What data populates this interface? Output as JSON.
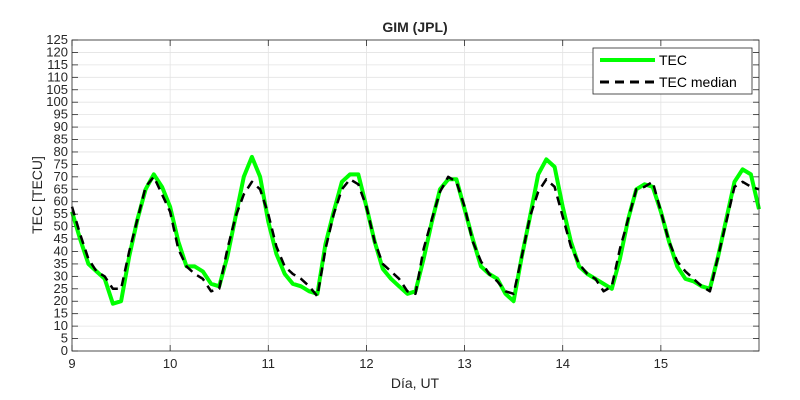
{
  "chart_data": {
    "type": "line",
    "title": "GIM (JPL)",
    "xlabel": "Día, UT",
    "ylabel": "TEC [TECU]",
    "xlim": [
      9,
      16
    ],
    "ylim": [
      0,
      125
    ],
    "x_ticks": [
      9,
      10,
      11,
      12,
      13,
      14,
      15
    ],
    "y_ticks": [
      0,
      5,
      10,
      15,
      20,
      25,
      30,
      35,
      40,
      45,
      50,
      55,
      60,
      65,
      70,
      75,
      80,
      85,
      90,
      95,
      100,
      105,
      110,
      115,
      120,
      125
    ],
    "grid": true,
    "legend_position": "top-right",
    "series": [
      {
        "name": "TEC",
        "color": "#00ff00",
        "style": "solid",
        "x": [
          9.0,
          9.083,
          9.167,
          9.25,
          9.333,
          9.417,
          9.5,
          9.583,
          9.667,
          9.75,
          9.833,
          9.917,
          10.0,
          10.083,
          10.167,
          10.25,
          10.333,
          10.417,
          10.5,
          10.583,
          10.667,
          10.75,
          10.833,
          10.917,
          11.0,
          11.083,
          11.167,
          11.25,
          11.333,
          11.417,
          11.5,
          11.583,
          11.667,
          11.75,
          11.833,
          11.917,
          12.0,
          12.083,
          12.167,
          12.25,
          12.333,
          12.417,
          12.5,
          12.583,
          12.667,
          12.75,
          12.833,
          12.917,
          13.0,
          13.083,
          13.167,
          13.25,
          13.333,
          13.417,
          13.5,
          13.583,
          13.667,
          13.75,
          13.833,
          13.917,
          14.0,
          14.083,
          14.167,
          14.25,
          14.333,
          14.417,
          14.5,
          14.583,
          14.667,
          14.75,
          14.833,
          14.917,
          15.0,
          15.083,
          15.167,
          15.25,
          15.333,
          15.417,
          15.5,
          15.583,
          15.667,
          15.75,
          15.833,
          15.917,
          16.0
        ],
        "values": [
          56,
          45,
          35,
          32,
          29,
          19,
          20,
          38,
          53,
          65,
          71,
          66,
          58,
          44,
          34,
          34,
          32,
          27,
          26,
          38,
          54,
          70,
          78,
          70,
          52,
          39,
          31,
          27,
          26,
          24,
          23,
          43,
          56,
          68,
          71,
          71,
          58,
          44,
          33,
          29,
          26,
          23,
          24,
          37,
          52,
          65,
          69,
          69,
          57,
          45,
          34,
          31,
          29,
          23,
          20,
          38,
          54,
          71,
          77,
          74,
          58,
          44,
          34,
          31,
          29,
          27,
          25,
          37,
          53,
          65,
          67,
          66,
          56,
          44,
          34,
          29,
          28,
          26,
          25,
          38,
          53,
          68,
          73,
          71,
          57
        ]
      },
      {
        "name": "TEC median",
        "color": "#000000",
        "style": "dashed",
        "x": [
          9.0,
          9.083,
          9.167,
          9.25,
          9.333,
          9.417,
          9.5,
          9.583,
          9.667,
          9.75,
          9.833,
          9.917,
          10.0,
          10.083,
          10.167,
          10.25,
          10.333,
          10.417,
          10.5,
          10.583,
          10.667,
          10.75,
          10.833,
          10.917,
          11.0,
          11.083,
          11.167,
          11.25,
          11.333,
          11.417,
          11.5,
          11.583,
          11.667,
          11.75,
          11.833,
          11.917,
          12.0,
          12.083,
          12.167,
          12.25,
          12.333,
          12.417,
          12.5,
          12.583,
          12.667,
          12.75,
          12.833,
          12.917,
          13.0,
          13.083,
          13.167,
          13.25,
          13.333,
          13.417,
          13.5,
          13.583,
          13.667,
          13.75,
          13.833,
          13.917,
          14.0,
          14.083,
          14.167,
          14.25,
          14.333,
          14.417,
          14.5,
          14.583,
          14.667,
          14.75,
          14.833,
          14.917,
          15.0,
          15.083,
          15.167,
          15.25,
          15.333,
          15.417,
          15.5,
          15.583,
          15.667,
          15.75,
          15.833,
          15.917,
          16.0
        ],
        "values": [
          58,
          47,
          37,
          32,
          30,
          25,
          25,
          40,
          53,
          66,
          70,
          63,
          56,
          41,
          34,
          31,
          29,
          24,
          25,
          41,
          54,
          63,
          68,
          65,
          55,
          42,
          34,
          31,
          29,
          26,
          22,
          41,
          55,
          65,
          69,
          67,
          58,
          44,
          35,
          32,
          29,
          24,
          23,
          41,
          53,
          64,
          70,
          68,
          58,
          44,
          36,
          31,
          28,
          24,
          23,
          38,
          54,
          64,
          69,
          66,
          54,
          42,
          35,
          31,
          29,
          24,
          26,
          41,
          53,
          65,
          66,
          68,
          56,
          44,
          36,
          32,
          29,
          26,
          24,
          38,
          52,
          66,
          68,
          66,
          65
        ]
      }
    ]
  }
}
